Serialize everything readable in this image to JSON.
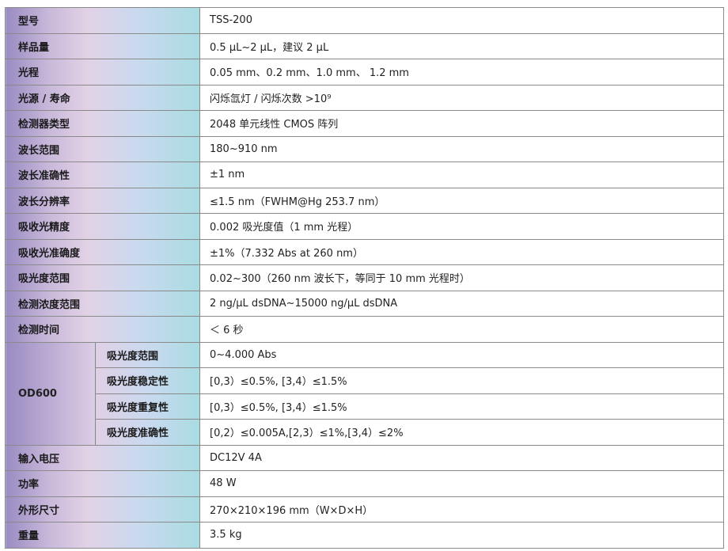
{
  "rows": [
    {
      "label": "型号",
      "value": "TSS-200"
    },
    {
      "label": "样品量",
      "value": "0.5 µL~2 µL，建议 2 µL"
    },
    {
      "label": "光程",
      "value": "0.05 mm、0.2 mm、1.0 mm、 1.2 mm"
    },
    {
      "label": "光源 / 寿命",
      "value": "闪烁氙灯 / 闪烁次数 >10⁹"
    },
    {
      "label": "检测器类型",
      "value": "2048 单元线性 CMOS 阵列"
    },
    {
      "label": "波长范围",
      "value": "180~910 nm"
    },
    {
      "label": "波长准确性",
      "value": "±1 nm"
    },
    {
      "label": "波长分辨率",
      "value": "≤1.5 nm（FWHM@Hg 253.7 nm）"
    },
    {
      "label": "吸收光精度",
      "value": "0.002 吸光度值（1 mm 光程）"
    },
    {
      "label": "吸收光准确度",
      "value": "±1%（7.332 Abs at 260 nm）"
    },
    {
      "label": "吸光度范围",
      "value": "0.02~300（260 nm 波长下，等同于 10 mm 光程时）"
    },
    {
      "label": "检测浓度范围",
      "value": "2 ng/µL dsDNA~15000 ng/µL dsDNA"
    },
    {
      "label": "检测时间",
      "value": "＜ 6 秒"
    }
  ],
  "od600": {
    "label": "OD600",
    "rows": [
      {
        "label": "吸光度范围",
        "value": "0~4.000 Abs"
      },
      {
        "label": "吸光度稳定性",
        "value": "[0,3）≤0.5%, [3,4）≤1.5%"
      },
      {
        "label": "吸光度重复性",
        "value": "[0,3）≤0.5%, [3,4）≤1.5%"
      },
      {
        "label": "吸光度准确性",
        "value": "[0,2）≤0.005A,[2,3）≤1%,[3,4）≤2%"
      }
    ]
  },
  "rows_after": [
    {
      "label": "输入电压",
      "value": "DC12V 4A"
    },
    {
      "label": "功率",
      "value": "48 W"
    },
    {
      "label": "外形尺寸",
      "value": "270×210×196 mm（W×D×H）"
    },
    {
      "label": "重量",
      "value": "3.5 kg"
    }
  ]
}
